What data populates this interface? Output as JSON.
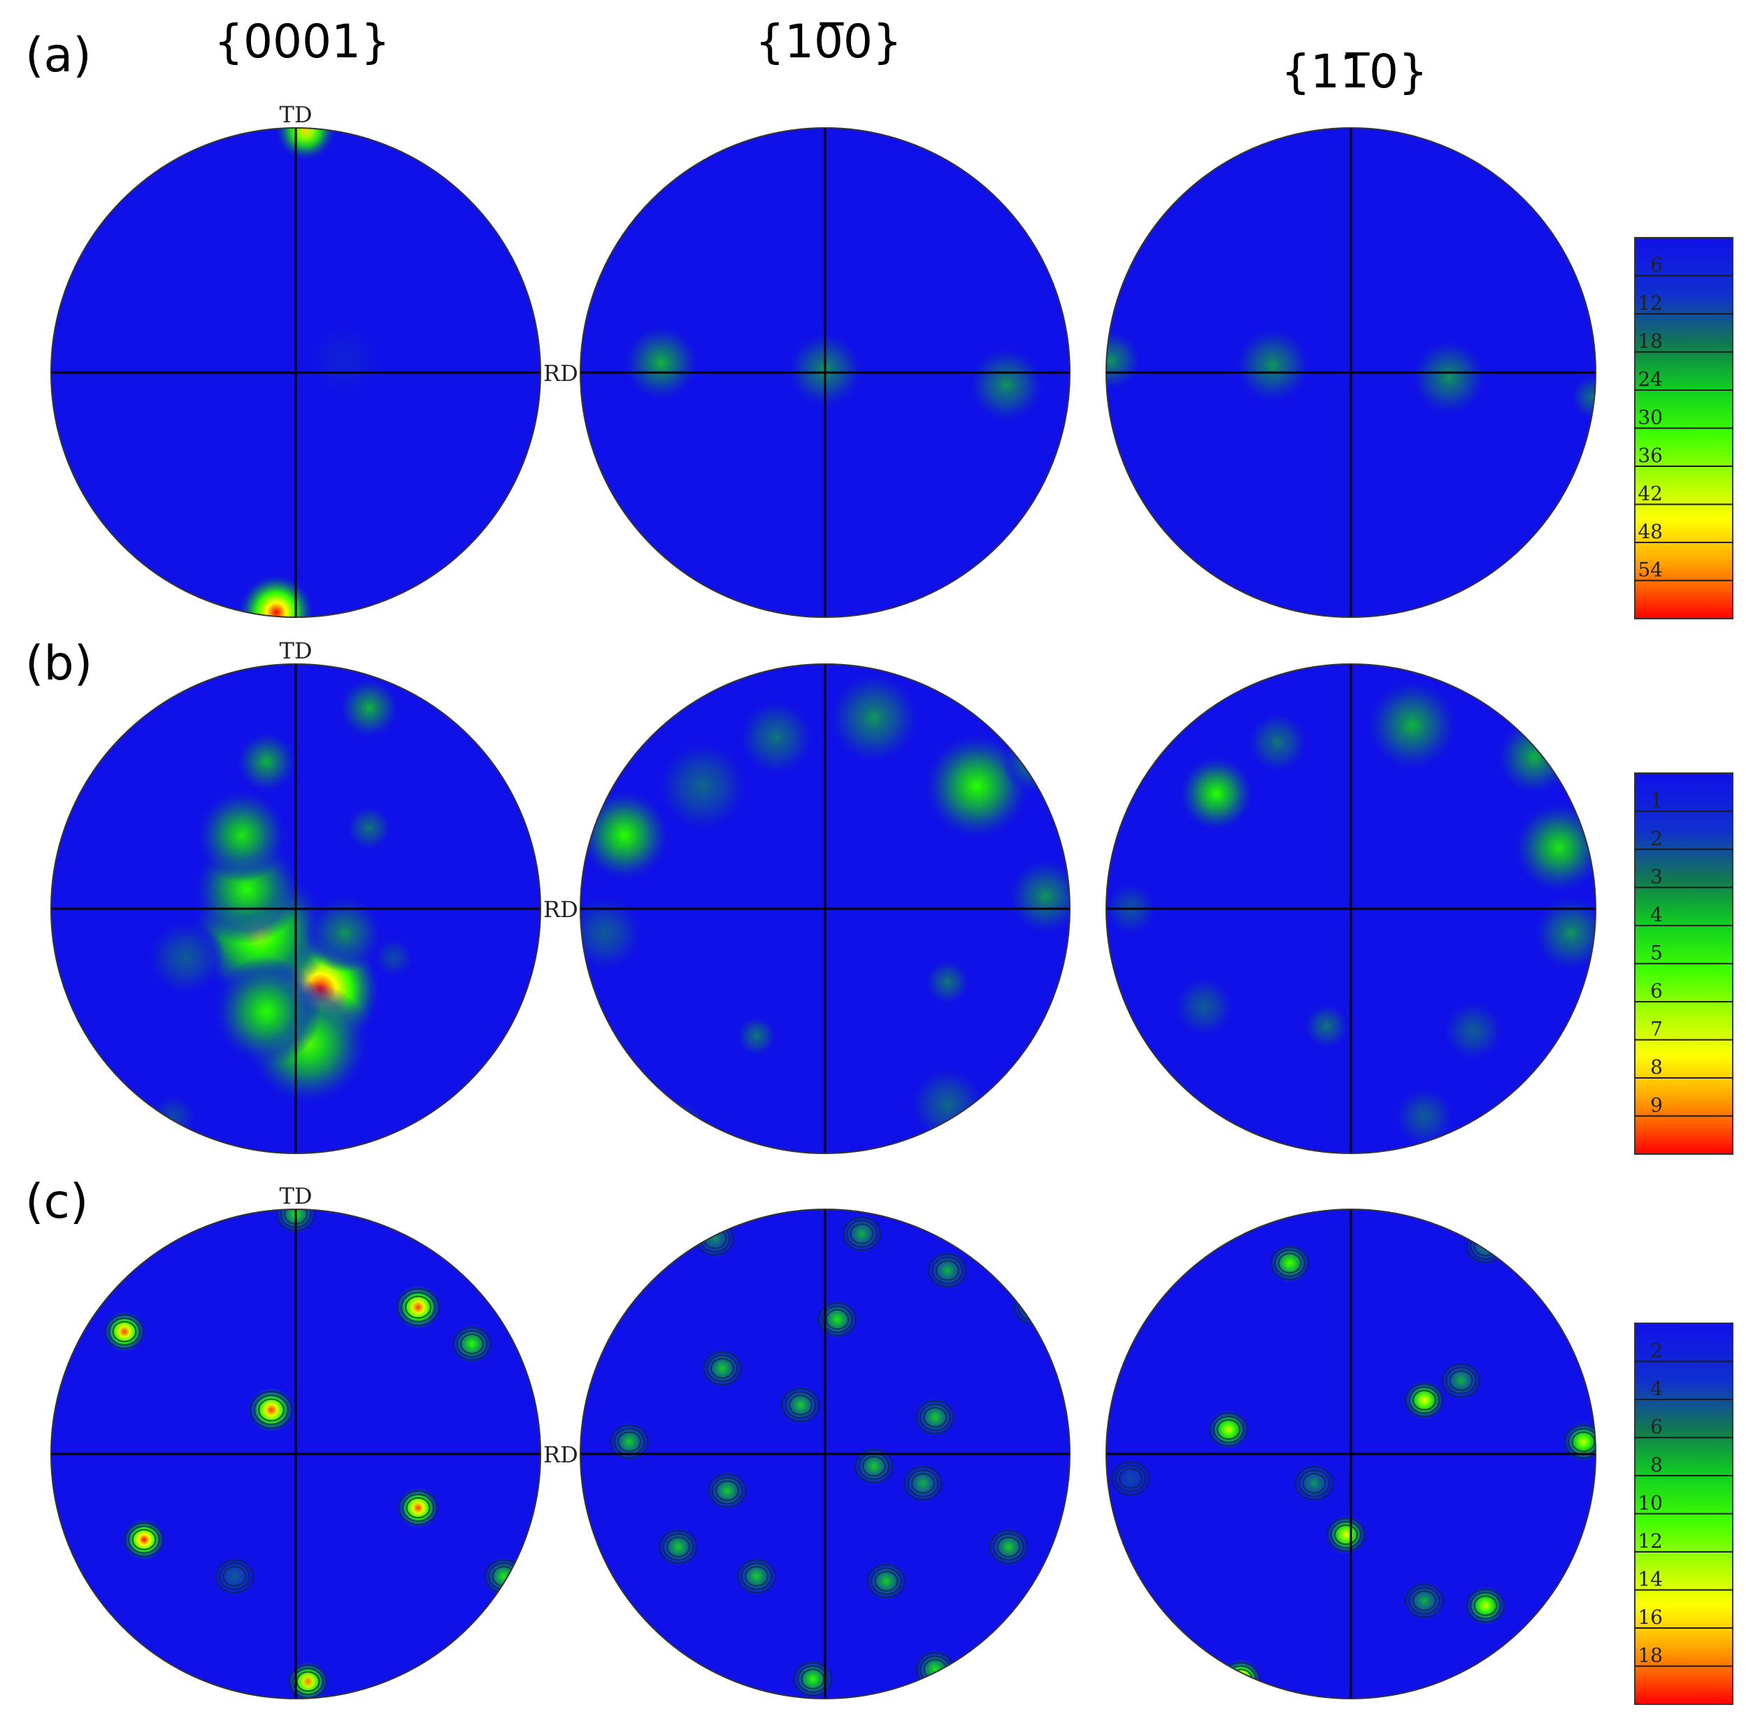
{
  "columns": [
    "{0001}",
    "{10̅0}",
    "{11̅0}"
  ],
  "axis_labels": {
    "top": "TD",
    "right": "RD"
  },
  "rows": [
    {
      "label": "(a)",
      "scale_ticks": [
        "6",
        "12",
        "18",
        "24",
        "30",
        "36",
        "42",
        "48",
        "54"
      ],
      "poles": [
        {
          "name": "0001",
          "spots": [
            [
              0.04,
              0.99,
              0.08,
              0.8
            ],
            [
              -0.08,
              -0.98,
              0.1,
              1.0
            ],
            [
              0.2,
              0.05,
              0.1,
              0.05
            ]
          ]
        },
        {
          "name": "10-10",
          "spots": [
            [
              -0.67,
              0.04,
              0.1,
              0.35
            ],
            [
              0.0,
              0.01,
              0.1,
              0.3
            ],
            [
              0.74,
              -0.05,
              0.1,
              0.3
            ]
          ]
        },
        {
          "name": "11-20",
          "spots": [
            [
              -0.98,
              0.05,
              0.08,
              0.3
            ],
            [
              -0.32,
              0.03,
              0.1,
              0.3
            ],
            [
              0.4,
              -0.02,
              0.1,
              0.3
            ],
            [
              0.99,
              -0.1,
              0.06,
              0.25
            ]
          ]
        }
      ]
    },
    {
      "label": "(b)",
      "scale_ticks": [
        "1",
        "2",
        "3",
        "4",
        "5",
        "6",
        "7",
        "8",
        "9"
      ],
      "poles": [
        {
          "name": "0001",
          "spots": [
            [
              0.1,
              -0.33,
              0.16,
              1.0
            ],
            [
              -0.15,
              -0.1,
              0.18,
              0.65
            ],
            [
              -0.2,
              0.08,
              0.14,
              0.5
            ],
            [
              -0.22,
              0.3,
              0.12,
              0.45
            ],
            [
              0.05,
              -0.55,
              0.16,
              0.55
            ],
            [
              -0.12,
              -0.42,
              0.14,
              0.5
            ],
            [
              -0.12,
              0.6,
              0.08,
              0.35
            ],
            [
              0.3,
              0.82,
              0.08,
              0.35
            ],
            [
              0.3,
              0.33,
              0.06,
              0.25
            ],
            [
              -0.45,
              -0.2,
              0.1,
              0.2
            ],
            [
              0.2,
              -0.1,
              0.1,
              0.3
            ],
            [
              -0.5,
              -0.85,
              0.06,
              0.15
            ],
            [
              0.4,
              -0.2,
              0.05,
              0.15
            ]
          ]
        },
        {
          "name": "10-10",
          "spots": [
            [
              0.62,
              0.5,
              0.14,
              0.5
            ],
            [
              -0.82,
              0.3,
              0.12,
              0.5
            ],
            [
              0.2,
              0.78,
              0.12,
              0.3
            ],
            [
              -0.2,
              0.7,
              0.1,
              0.25
            ],
            [
              0.5,
              -0.3,
              0.06,
              0.25
            ],
            [
              -0.28,
              -0.52,
              0.05,
              0.25
            ],
            [
              0.9,
              0.05,
              0.1,
              0.3
            ],
            [
              -0.9,
              -0.1,
              0.1,
              0.2
            ],
            [
              -0.5,
              0.5,
              0.12,
              0.22
            ],
            [
              -0.6,
              -0.9,
              0.08,
              0.2
            ],
            [
              0.5,
              -0.8,
              0.1,
              0.22
            ],
            [
              0.85,
              0.6,
              0.08,
              0.3
            ]
          ]
        },
        {
          "name": "11-20",
          "spots": [
            [
              -0.55,
              0.47,
              0.1,
              0.5
            ],
            [
              0.85,
              0.25,
              0.12,
              0.45
            ],
            [
              0.25,
              0.75,
              0.12,
              0.35
            ],
            [
              0.75,
              0.62,
              0.1,
              0.35
            ],
            [
              -0.1,
              -0.48,
              0.06,
              0.25
            ],
            [
              -0.3,
              0.68,
              0.08,
              0.25
            ],
            [
              0.9,
              -0.1,
              0.1,
              0.3
            ],
            [
              0.5,
              -0.5,
              0.08,
              0.2
            ],
            [
              -0.6,
              -0.4,
              0.08,
              0.2
            ],
            [
              -0.9,
              0.0,
              0.07,
              0.18
            ],
            [
              0.3,
              -0.85,
              0.08,
              0.2
            ]
          ]
        }
      ]
    },
    {
      "label": "(c)",
      "scale_ticks": [
        "2",
        "4",
        "6",
        "8",
        "10",
        "12",
        "14",
        "16",
        "18"
      ],
      "poles": [
        {
          "name": "0001",
          "spots": [
            [
              -0.7,
              0.5,
              0.055,
              0.95
            ],
            [
              0.5,
              0.6,
              0.06,
              0.95
            ],
            [
              0.72,
              0.45,
              0.05,
              0.5
            ],
            [
              -0.1,
              0.18,
              0.06,
              0.95
            ],
            [
              0.5,
              -0.22,
              0.055,
              0.95
            ],
            [
              -0.62,
              -0.35,
              0.055,
              1.0
            ],
            [
              0.05,
              -0.93,
              0.05,
              0.9
            ],
            [
              0.0,
              0.98,
              0.04,
              0.45
            ],
            [
              0.85,
              -0.5,
              0.05,
              0.45
            ],
            [
              -0.25,
              -0.5,
              0.04,
              0.2
            ]
          ]
        },
        {
          "name": "10-10",
          "spots": [
            [
              0.05,
              0.55,
              0.045,
              0.45
            ],
            [
              -0.42,
              0.35,
              0.045,
              0.4
            ],
            [
              -0.1,
              0.2,
              0.05,
              0.4
            ],
            [
              0.45,
              0.15,
              0.05,
              0.4
            ],
            [
              -0.8,
              0.05,
              0.045,
              0.4
            ],
            [
              0.2,
              -0.05,
              0.05,
              0.4
            ],
            [
              0.4,
              -0.12,
              0.04,
              0.35
            ],
            [
              -0.4,
              -0.15,
              0.04,
              0.4
            ],
            [
              -0.6,
              -0.38,
              0.045,
              0.4
            ],
            [
              0.75,
              -0.38,
              0.05,
              0.4
            ],
            [
              -0.28,
              -0.5,
              0.045,
              0.4
            ],
            [
              0.25,
              -0.52,
              0.045,
              0.4
            ],
            [
              -0.05,
              -0.92,
              0.045,
              0.5
            ],
            [
              0.45,
              -0.88,
              0.045,
              0.45
            ],
            [
              0.5,
              0.75,
              0.045,
              0.35
            ],
            [
              0.15,
              0.9,
              0.04,
              0.35
            ],
            [
              -0.45,
              0.88,
              0.04,
              0.3
            ],
            [
              0.85,
              0.6,
              0.04,
              0.3
            ]
          ]
        },
        {
          "name": "11-20",
          "spots": [
            [
              -0.25,
              0.78,
              0.05,
              0.55
            ],
            [
              0.3,
              0.22,
              0.045,
              0.75
            ],
            [
              -0.5,
              0.1,
              0.045,
              0.7
            ],
            [
              0.95,
              0.05,
              0.045,
              0.7
            ],
            [
              -0.02,
              -0.33,
              0.045,
              0.75
            ],
            [
              -0.15,
              -0.12,
              0.035,
              0.3
            ],
            [
              0.55,
              -0.62,
              0.05,
              0.7
            ],
            [
              0.3,
              -0.6,
              0.04,
              0.35
            ],
            [
              -0.45,
              -0.92,
              0.045,
              1.0
            ],
            [
              0.45,
              0.3,
              0.04,
              0.35
            ],
            [
              0.55,
              0.85,
              0.04,
              0.3
            ],
            [
              -0.9,
              -0.1,
              0.05,
              0.15
            ]
          ]
        }
      ]
    }
  ]
}
